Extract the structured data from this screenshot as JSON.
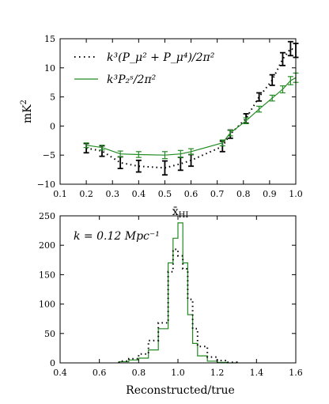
{
  "chart_data": [
    {
      "type": "line",
      "xlabel": "x̄",
      "xlabel_sub": "HI",
      "ylabel": "mK",
      "ylabel_sup": "2",
      "xlim": [
        0.1,
        1.0
      ],
      "ylim": [
        -10,
        15
      ],
      "xticks": [
        0.1,
        0.2,
        0.3,
        0.4,
        0.5,
        0.6,
        0.7,
        0.8,
        0.9,
        1.0
      ],
      "xtick_labels": [
        "0.1",
        "0.2",
        "0.3",
        "0.4",
        "0.5",
        "0.6",
        "0.7",
        "0.8",
        "0.9",
        "1.0"
      ],
      "yticks": [
        -10,
        -5,
        0,
        5,
        10,
        15
      ],
      "ytick_labels": [
        "−10",
        "−5",
        "0",
        "5",
        "10",
        "15"
      ],
      "legend_position": "top-left",
      "series": [
        {
          "name": "k³(P_μ² + P_μ⁴)/2π²",
          "style": "dotted",
          "color": "#000000",
          "x": [
            0.2,
            0.26,
            0.33,
            0.4,
            0.5,
            0.56,
            0.6,
            0.72,
            0.75,
            0.81,
            0.86,
            0.91,
            0.95,
            0.98,
            1.0
          ],
          "y": [
            -3.8,
            -4.3,
            -6.3,
            -6.9,
            -7.2,
            -6.5,
            -5.9,
            -3.5,
            -1.4,
            1.3,
            5.0,
            7.9,
            11.5,
            13.3,
            13.0
          ],
          "err": [
            0.8,
            0.9,
            1.0,
            1.0,
            1.2,
            1.1,
            1.0,
            0.9,
            0.7,
            0.8,
            0.7,
            0.9,
            1.1,
            1.2,
            1.2
          ]
        },
        {
          "name": "k³P₂ˢ/2π²",
          "style": "solid",
          "color": "#228b22",
          "x": [
            0.2,
            0.26,
            0.33,
            0.4,
            0.5,
            0.56,
            0.6,
            0.72,
            0.75,
            0.81,
            0.86,
            0.91,
            0.95,
            0.98,
            1.0
          ],
          "y": [
            -3.3,
            -3.7,
            -4.8,
            -4.9,
            -5.0,
            -4.8,
            -4.4,
            -2.9,
            -1.2,
            0.9,
            2.9,
            4.8,
            6.3,
            7.8,
            8.3
          ],
          "err": [
            0.4,
            0.4,
            0.5,
            0.5,
            0.6,
            0.6,
            0.5,
            0.5,
            0.5,
            0.5,
            0.5,
            0.5,
            0.6,
            0.7,
            0.8
          ]
        }
      ]
    },
    {
      "type": "histogram",
      "annotation": "k = 0.12 Mpc⁻¹",
      "xlabel": "Reconstructed/true",
      "xlim": [
        0.4,
        1.6
      ],
      "ylim": [
        0,
        250
      ],
      "xticks": [
        0.4,
        0.6,
        0.8,
        1.0,
        1.2,
        1.4,
        1.6
      ],
      "xtick_labels": [
        "0.4",
        "0.6",
        "0.8",
        "1.0",
        "1.2",
        "1.4",
        "1.6"
      ],
      "yticks": [
        0,
        50,
        100,
        150,
        200,
        250
      ],
      "ytick_labels": [
        "0",
        "50",
        "100",
        "150",
        "200",
        "250"
      ],
      "bin_edges": [
        0.7,
        0.75,
        0.8,
        0.85,
        0.9,
        0.95,
        0.975,
        1.0,
        1.025,
        1.05,
        1.075,
        1.1,
        1.15,
        1.2,
        1.25,
        1.3
      ],
      "series": [
        {
          "name": "",
          "style": "solid",
          "color": "#228b22",
          "values": [
            2,
            5,
            8,
            22,
            58,
            170,
            212,
            238,
            170,
            82,
            33,
            12,
            3,
            1,
            0
          ]
        },
        {
          "name": "",
          "style": "dotted",
          "color": "#000000",
          "values": [
            3,
            7,
            15,
            38,
            68,
            155,
            193,
            182,
            160,
            108,
            58,
            28,
            10,
            4,
            1
          ]
        }
      ]
    }
  ]
}
